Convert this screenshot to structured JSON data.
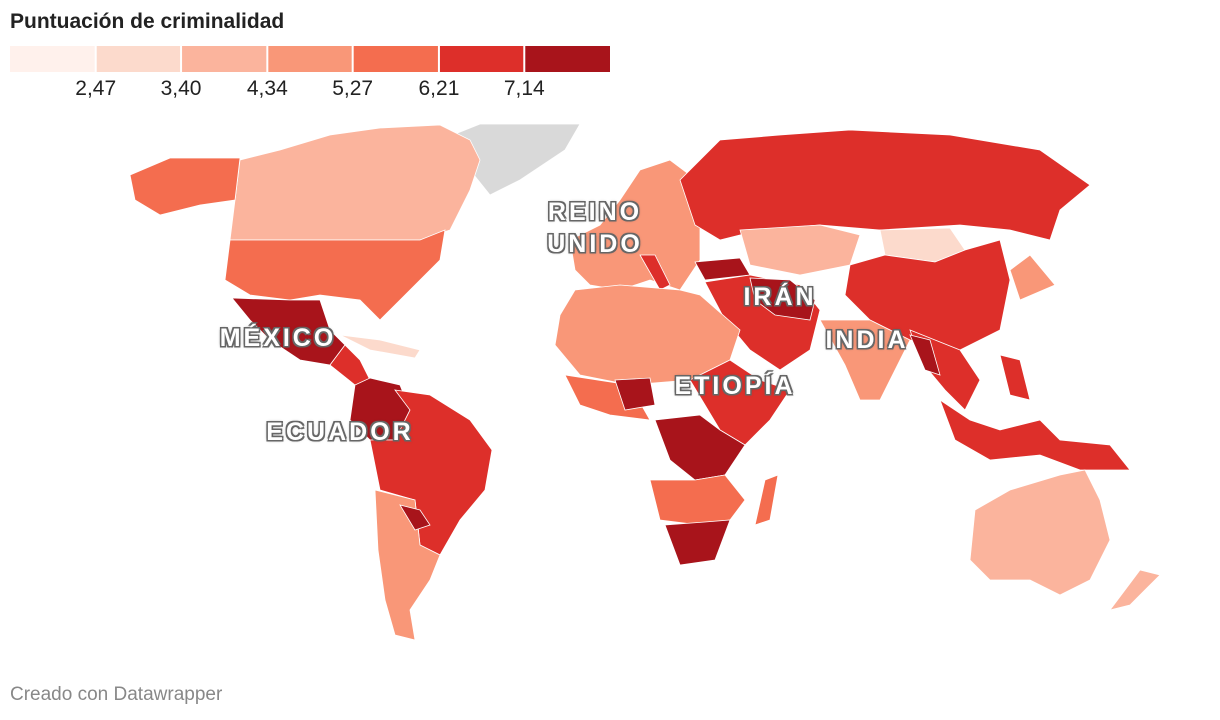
{
  "title": "Puntuación de criminalidad",
  "legend": {
    "colors": [
      "#fff1ec",
      "#fcdacc",
      "#fbb49d",
      "#f99778",
      "#f46d4f",
      "#dd2f2a",
      "#a8141b"
    ],
    "ticks": [
      {
        "value": 2.47,
        "label": "2,47"
      },
      {
        "value": 3.4,
        "label": "3,40"
      },
      {
        "value": 4.34,
        "label": "4,34"
      },
      {
        "value": 5.27,
        "label": "5,27"
      },
      {
        "value": 6.21,
        "label": "6,21"
      },
      {
        "value": 7.14,
        "label": "7,14"
      }
    ]
  },
  "labels": [
    "REINO UNIDO",
    "MÉXICO",
    "IRÁN",
    "INDIA",
    "ETIOPÍA",
    "ECUADOR"
  ],
  "footer": "Creado con Datawrapper"
}
